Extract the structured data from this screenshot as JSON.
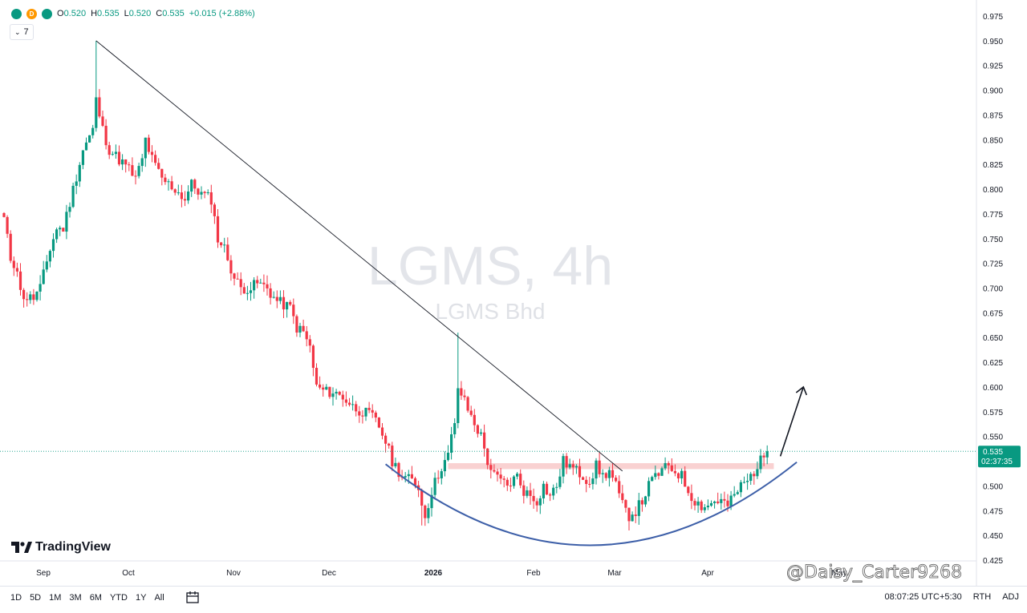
{
  "ohlc": {
    "open_label": "O",
    "open": "0.520",
    "high_label": "H",
    "high": "0.535",
    "low_label": "L",
    "low": "0.520",
    "close_label": "C",
    "close": "0.535",
    "change": "+0.015 (+2.88%)"
  },
  "indicator_count": "7",
  "price_tag": {
    "price": "0.535",
    "countdown": "02:37:35",
    "color": "#089981"
  },
  "watermark": {
    "title": "LGMS, 4h",
    "subtitle": "LGMS Bhd"
  },
  "branding": {
    "logo_text": "TradingView"
  },
  "user_watermark": "@Daisy_Carter9268",
  "bottom_toolbar": {
    "ranges": [
      "1D",
      "5D",
      "1M",
      "3M",
      "6M",
      "YTD",
      "1Y",
      "All"
    ],
    "time": "08:07:25 UTC+5:30",
    "rth": "RTH",
    "adj": "ADJ"
  },
  "colors": {
    "up": "#089981",
    "down": "#f23645",
    "curve": "#3d5fa8",
    "resistance": "#f8c9c9"
  },
  "chart_data": {
    "type": "candlestick",
    "symbol": "LGMS",
    "interval": "4h",
    "ylim": [
      0.425,
      0.975
    ],
    "y_ticks": [
      0.425,
      0.45,
      0.475,
      0.5,
      0.525,
      0.55,
      0.575,
      0.6,
      0.625,
      0.65,
      0.675,
      0.7,
      0.725,
      0.75,
      0.775,
      0.8,
      0.825,
      0.85,
      0.875,
      0.9,
      0.925,
      0.95,
      0.975
    ],
    "y_tick_labels": [
      "0.425",
      "0.450",
      "0.475",
      "0.500",
      "0.525",
      "0.550",
      "0.575",
      "0.600",
      "0.625",
      "0.650",
      "0.675",
      "0.700",
      "0.725",
      "0.750",
      "0.775",
      "0.800",
      "0.825",
      "0.850",
      "0.875",
      "0.900",
      "0.925",
      "0.950",
      "0.975"
    ],
    "x_labels": [
      "Sep",
      "Oct",
      "Nov",
      "Dec",
      "2026",
      "Feb",
      "Mar",
      "Apr",
      "May"
    ],
    "current_price": 0.535,
    "path_points": [
      [
        0,
        0.77
      ],
      [
        2,
        0.73
      ],
      [
        4,
        0.72
      ],
      [
        5,
        0.695
      ],
      [
        7,
        0.69
      ],
      [
        9,
        0.69
      ],
      [
        11,
        0.7
      ],
      [
        14,
        0.74
      ],
      [
        16,
        0.76
      ],
      [
        18,
        0.76
      ],
      [
        21,
        0.8
      ],
      [
        24,
        0.84
      ],
      [
        27,
        0.86
      ],
      [
        28,
        0.89
      ],
      [
        30,
        0.86
      ],
      [
        32,
        0.84
      ],
      [
        35,
        0.83
      ],
      [
        38,
        0.82
      ],
      [
        40,
        0.81
      ],
      [
        42,
        0.83
      ],
      [
        43,
        0.85
      ],
      [
        45,
        0.83
      ],
      [
        48,
        0.81
      ],
      [
        52,
        0.8
      ],
      [
        55,
        0.79
      ],
      [
        57,
        0.805
      ],
      [
        60,
        0.795
      ],
      [
        63,
        0.79
      ],
      [
        65,
        0.75
      ],
      [
        67,
        0.74
      ],
      [
        70,
        0.71
      ],
      [
        72,
        0.7
      ],
      [
        75,
        0.7
      ],
      [
        77,
        0.705
      ],
      [
        80,
        0.7
      ],
      [
        82,
        0.69
      ],
      [
        84,
        0.685
      ],
      [
        87,
        0.68
      ],
      [
        89,
        0.66
      ],
      [
        91,
        0.655
      ],
      [
        93,
        0.64
      ],
      [
        95,
        0.6
      ],
      [
        98,
        0.595
      ],
      [
        100,
        0.595
      ],
      [
        103,
        0.59
      ],
      [
        106,
        0.58
      ],
      [
        109,
        0.575
      ],
      [
        112,
        0.57
      ],
      [
        114,
        0.56
      ],
      [
        116,
        0.545
      ],
      [
        118,
        0.525
      ],
      [
        121,
        0.51
      ],
      [
        124,
        0.505
      ],
      [
        126,
        0.5
      ],
      [
        127,
        0.48
      ],
      [
        128,
        0.47
      ],
      [
        130,
        0.495
      ],
      [
        133,
        0.52
      ],
      [
        135,
        0.53
      ],
      [
        136,
        0.55
      ],
      [
        137,
        0.56
      ],
      [
        138,
        0.6
      ],
      [
        140,
        0.585
      ],
      [
        142,
        0.57
      ],
      [
        145,
        0.55
      ],
      [
        147,
        0.525
      ],
      [
        149,
        0.51
      ],
      [
        151,
        0.505
      ],
      [
        153,
        0.5
      ],
      [
        156,
        0.51
      ],
      [
        158,
        0.495
      ],
      [
        160,
        0.49
      ],
      [
        162,
        0.485
      ],
      [
        164,
        0.5
      ],
      [
        166,
        0.49
      ],
      [
        168,
        0.5
      ],
      [
        170,
        0.525
      ],
      [
        172,
        0.52
      ],
      [
        174,
        0.515
      ],
      [
        176,
        0.51
      ],
      [
        178,
        0.505
      ],
      [
        180,
        0.52
      ],
      [
        182,
        0.51
      ],
      [
        184,
        0.515
      ],
      [
        186,
        0.5
      ],
      [
        188,
        0.48
      ],
      [
        190,
        0.47
      ],
      [
        192,
        0.475
      ],
      [
        194,
        0.485
      ],
      [
        196,
        0.5
      ],
      [
        198,
        0.51
      ],
      [
        200,
        0.515
      ],
      [
        202,
        0.52
      ],
      [
        204,
        0.515
      ],
      [
        206,
        0.51
      ],
      [
        208,
        0.495
      ],
      [
        210,
        0.485
      ],
      [
        212,
        0.48
      ],
      [
        214,
        0.48
      ],
      [
        216,
        0.485
      ],
      [
        218,
        0.485
      ],
      [
        220,
        0.48
      ],
      [
        222,
        0.49
      ],
      [
        224,
        0.5
      ],
      [
        226,
        0.505
      ],
      [
        228,
        0.515
      ],
      [
        230,
        0.525
      ],
      [
        232,
        0.535
      ]
    ],
    "annotations": {
      "trendline": {
        "from": [
          28,
          0.95
        ],
        "to": [
          188,
          0.515
        ]
      },
      "resistance_zone": {
        "x": [
          135,
          234
        ],
        "y": [
          0.517,
          0.523
        ]
      },
      "rounding_bottom": {
        "x": [
          116,
          241
        ],
        "y_min": 0.44,
        "y_left": 0.522,
        "y_right": 0.524
      },
      "breakout_arrow": {
        "from": [
          236,
          0.53
        ],
        "to": [
          243,
          0.6
        ]
      }
    }
  }
}
